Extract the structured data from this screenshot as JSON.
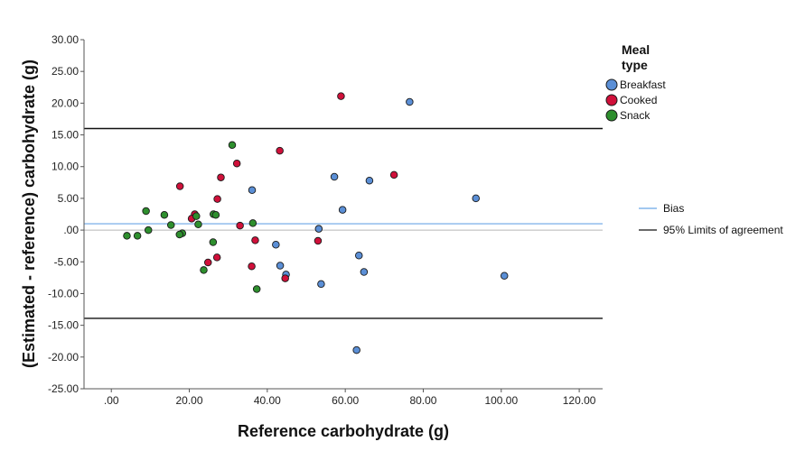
{
  "chart_data": {
    "type": "scatter",
    "title": "",
    "xlabel": "Reference carbohydrate (g)",
    "ylabel": "(Estimated - reference) carbohydrate (g)",
    "xlim": [
      -7,
      126
    ],
    "ylim": [
      -25,
      30
    ],
    "x_ticks": [
      ".00",
      "20.00",
      "40.00",
      "60.00",
      "80.00",
      "100.00",
      "120.00"
    ],
    "x_tick_values": [
      0,
      20,
      40,
      60,
      80,
      100,
      120
    ],
    "y_ticks": [
      "30.00",
      "25.00",
      "20.00",
      "15.00",
      "10.00",
      "5.00",
      ".00",
      "-5.00",
      "-10.00",
      "-15.00",
      "-20.00",
      "-25.00"
    ],
    "y_tick_values": [
      30,
      25,
      20,
      15,
      10,
      5,
      0,
      -5,
      -10,
      -15,
      -20,
      -25
    ],
    "grid": false,
    "legend_position": "right",
    "legend_title": "Meal type",
    "legend_title_lines": [
      "Meal",
      "type"
    ],
    "series": [
      {
        "name": "Breakfast",
        "color": "#5b8fd6",
        "points": [
          [
            76.5,
            20.2
          ],
          [
            93.5,
            5.0
          ],
          [
            100.8,
            -7.2
          ],
          [
            66.2,
            7.8
          ],
          [
            57.2,
            8.4
          ],
          [
            59.3,
            3.2
          ],
          [
            53.2,
            0.2
          ],
          [
            63.5,
            -4.0
          ],
          [
            64.8,
            -6.6
          ],
          [
            53.8,
            -8.5
          ],
          [
            62.9,
            -18.9
          ],
          [
            36.1,
            6.3
          ],
          [
            42.2,
            -2.3
          ],
          [
            43.3,
            -5.6
          ],
          [
            44.8,
            -7.0
          ]
        ]
      },
      {
        "name": "Cooked",
        "color": "#d0103a",
        "points": [
          [
            58.9,
            21.1
          ],
          [
            72.5,
            8.7
          ],
          [
            43.2,
            12.5
          ],
          [
            32.2,
            10.5
          ],
          [
            28.1,
            8.3
          ],
          [
            17.6,
            6.9
          ],
          [
            27.2,
            4.9
          ],
          [
            21.4,
            2.5
          ],
          [
            20.6,
            1.8
          ],
          [
            33.0,
            0.7
          ],
          [
            36.9,
            -1.6
          ],
          [
            53.0,
            -1.7
          ],
          [
            27.1,
            -4.3
          ],
          [
            24.8,
            -5.1
          ],
          [
            36.0,
            -5.7
          ],
          [
            44.6,
            -7.6
          ]
        ]
      },
      {
        "name": "Snack",
        "color": "#2e8f2e",
        "points": [
          [
            31.0,
            13.4
          ],
          [
            8.9,
            3.0
          ],
          [
            13.6,
            2.4
          ],
          [
            26.2,
            2.5
          ],
          [
            26.8,
            2.4
          ],
          [
            21.8,
            2.2
          ],
          [
            36.3,
            1.1
          ],
          [
            15.3,
            0.8
          ],
          [
            22.3,
            0.9
          ],
          [
            9.5,
            0.0
          ],
          [
            18.2,
            -0.5
          ],
          [
            17.5,
            -0.7
          ],
          [
            4.0,
            -0.9
          ],
          [
            6.7,
            -0.9
          ],
          [
            26.1,
            -1.9
          ],
          [
            23.7,
            -6.3
          ],
          [
            37.3,
            -9.3
          ]
        ]
      }
    ],
    "reference_lines": [
      {
        "name": "Bias",
        "value": 1.0,
        "color": "#6aa6e6"
      },
      {
        "name": "95% Limits of agreement",
        "value": 16.0,
        "color": "#111111"
      },
      {
        "name": "95% Limits of agreement",
        "value": -13.9,
        "color": "#111111"
      }
    ],
    "zero_line": {
      "value": 0,
      "color": "#b8b8b8"
    },
    "line_legend": [
      {
        "name": "Bias",
        "color": "#6aa6e6"
      },
      {
        "name": "95% Limits of agreement",
        "color": "#111111"
      }
    ]
  }
}
